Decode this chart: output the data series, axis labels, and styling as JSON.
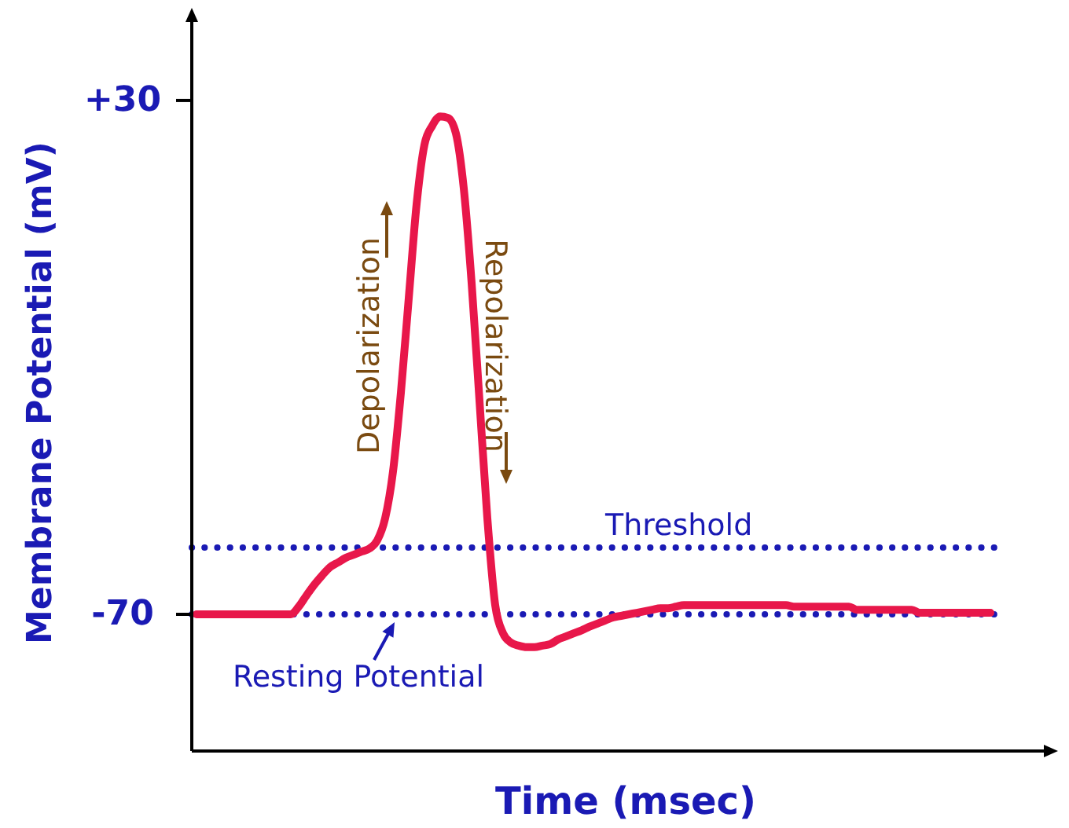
{
  "chart_data": {
    "type": "line",
    "xlabel": "Time (msec)",
    "ylabel": "Membrane Potential (mV)",
    "categories": [
      null,
      null,
      null,
      null,
      null,
      null,
      null,
      null,
      null,
      null,
      null,
      null,
      null,
      null,
      null,
      null,
      null,
      null,
      null,
      null,
      null,
      null,
      null,
      null,
      null,
      null,
      null,
      null,
      null,
      null,
      null,
      null,
      null,
      null,
      null,
      null,
      null,
      null,
      null,
      null,
      null,
      null,
      null,
      null,
      null,
      null,
      null,
      null,
      null,
      null,
      null,
      null,
      null,
      null,
      null,
      null,
      null,
      null,
      null,
      null,
      null,
      null,
      null,
      null,
      null,
      null,
      null,
      null,
      null,
      null,
      null,
      null,
      null,
      null,
      null,
      null,
      null,
      null,
      null,
      null,
      null,
      null,
      null,
      null,
      null,
      null,
      null,
      null,
      null,
      null,
      null,
      null,
      null,
      null,
      null,
      null,
      null,
      null,
      null,
      null,
      null,
      null
    ],
    "series": [
      {
        "color": "#e8174a",
        "values": [
          -70,
          -70,
          -70,
          -70,
          -70,
          -70,
          -70,
          -70,
          -70,
          -70,
          -70,
          -70,
          -70,
          -68.5,
          -66.3,
          -64.2,
          -62.4,
          -60.8,
          -59.9,
          -59,
          -58.4,
          -57.8,
          -57.2,
          -55.6,
          -51.3,
          -42.2,
          -26.9,
          -8.5,
          9.8,
          21.4,
          25.1,
          26.9,
          26.6,
          23.6,
          12.9,
          -5.5,
          -28.4,
          -51.3,
          -68.2,
          -73.7,
          -75.5,
          -76.1,
          -76.4,
          -76.4,
          -76.1,
          -75.8,
          -74.9,
          -74.3,
          -73.7,
          -73.1,
          -72.4,
          -71.8,
          -71.2,
          -70.6,
          -70.3,
          -70,
          -69.7,
          -69.4,
          -69.1,
          -68.8,
          -68.8,
          -68.5,
          -68.2,
          -68.2,
          -68.2,
          -68.2,
          -68.2,
          -68.2,
          -68.2,
          -68.2,
          -68.2,
          -68.2,
          -68.2,
          -68.2,
          -68.2,
          -68.2,
          -68.5,
          -68.5,
          -68.5,
          -68.5,
          -68.5,
          -68.5,
          -68.5,
          -68.5,
          -69.1,
          -69.1,
          -69.1,
          -69.1,
          -69.1,
          -69.1,
          -69.1,
          -69.1,
          -69.7,
          -69.7,
          -69.7,
          -69.7,
          -69.7,
          -69.7,
          -69.7,
          -69.7,
          -69.7,
          -69.7
        ]
      }
    ],
    "ylim": [
      -96.6,
      46.5
    ],
    "yticks": [
      {
        "value": -70,
        "label": "-70"
      },
      {
        "value": 30,
        "label": "+30"
      }
    ],
    "marker": "none",
    "line_style": "solid",
    "ref_lines": [
      {
        "axis": "y",
        "value": -57,
        "label": "Threshold",
        "color": "#1a1ab4",
        "line_style": "dotted"
      },
      {
        "axis": "y",
        "value": -70,
        "label": "Resting Potential",
        "color": "#1a1ab4",
        "line_style": "dotted"
      }
    ],
    "annotations": [
      "Depolarization",
      "Repolarization"
    ]
  }
}
